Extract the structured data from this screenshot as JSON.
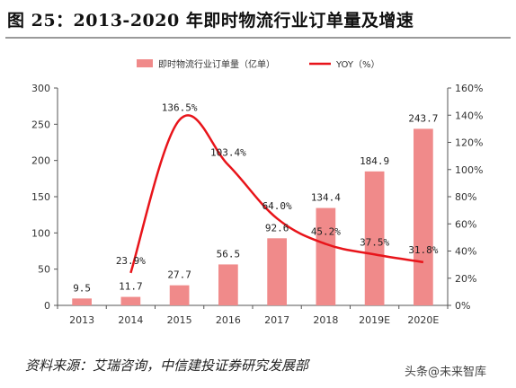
{
  "title": "图 25：2013-2020 年即时物流行业订单量及增速",
  "source": "资料来源：艾瑞咨询，中信建投证券研究发展部",
  "watermark": "头条@未来智库",
  "colors": {
    "bar": "#f08a8a",
    "line": "#e8141a"
  },
  "chart_data": {
    "type": "bar",
    "categories": [
      "2013",
      "2014",
      "2015",
      "2016",
      "2017",
      "2018",
      "2019E",
      "2020E"
    ],
    "series": [
      {
        "name": "即时物流行业订单量（亿单）",
        "type": "bar",
        "axis": "left",
        "values": [
          9.5,
          11.7,
          27.7,
          56.5,
          92.6,
          134.4,
          184.9,
          243.7
        ],
        "labels": [
          "9.5",
          "11.7",
          "27.7",
          "56.5",
          "92.6",
          "134.4",
          "184.9",
          "243.7"
        ]
      },
      {
        "name": "YOY（%）",
        "type": "line",
        "axis": "right",
        "values": [
          null,
          23.9,
          136.5,
          103.4,
          64.0,
          45.2,
          37.5,
          31.8
        ],
        "labels": [
          "",
          "23.9%",
          "136.5%",
          "103.4%",
          "64.0%",
          "45.2%",
          "37.5%",
          "31.8%"
        ]
      }
    ],
    "y_left": {
      "min": 0,
      "max": 300,
      "ticks": [
        "0",
        "50",
        "100",
        "150",
        "200",
        "250",
        "300"
      ]
    },
    "y_right": {
      "min": 0,
      "max": 160,
      "ticks": [
        "0%",
        "20%",
        "40%",
        "60%",
        "80%",
        "100%",
        "120%",
        "140%",
        "160%"
      ]
    },
    "legend": "top",
    "grid": false
  }
}
